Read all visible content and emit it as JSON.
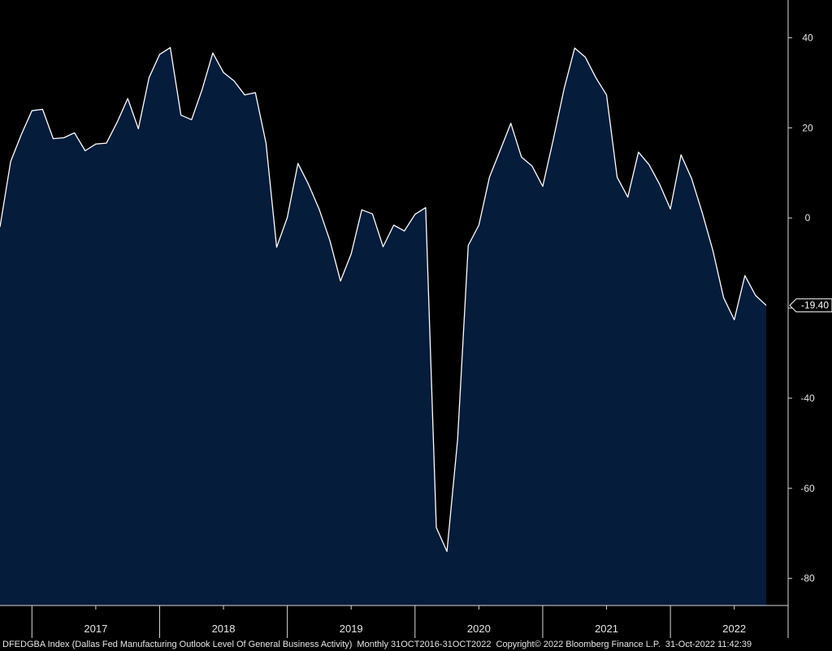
{
  "chart_data": {
    "type": "area",
    "title": "",
    "xlabel": "",
    "ylabel": "",
    "ylim": [
      -86,
      48
    ],
    "yticks": [
      40,
      20,
      0,
      -20,
      -40,
      -60,
      -80
    ],
    "x_year_labels": [
      "2017",
      "2018",
      "2019",
      "2020",
      "2021",
      "2022"
    ],
    "x": [
      "2016-10",
      "2016-11",
      "2016-12",
      "2017-01",
      "2017-02",
      "2017-03",
      "2017-04",
      "2017-05",
      "2017-06",
      "2017-07",
      "2017-08",
      "2017-09",
      "2017-10",
      "2017-11",
      "2017-12",
      "2018-01",
      "2018-02",
      "2018-03",
      "2018-04",
      "2018-05",
      "2018-06",
      "2018-07",
      "2018-08",
      "2018-09",
      "2018-10",
      "2018-11",
      "2018-12",
      "2019-01",
      "2019-02",
      "2019-03",
      "2019-04",
      "2019-05",
      "2019-06",
      "2019-07",
      "2019-08",
      "2019-09",
      "2019-10",
      "2019-11",
      "2019-12",
      "2020-01",
      "2020-02",
      "2020-03",
      "2020-04",
      "2020-05",
      "2020-06",
      "2020-07",
      "2020-08",
      "2020-09",
      "2020-10",
      "2020-11",
      "2020-12",
      "2021-01",
      "2021-02",
      "2021-03",
      "2021-04",
      "2021-05",
      "2021-06",
      "2021-07",
      "2021-08",
      "2021-09",
      "2021-10",
      "2021-11",
      "2021-12",
      "2022-01",
      "2022-02",
      "2022-03",
      "2022-04",
      "2022-05",
      "2022-06",
      "2022-07",
      "2022-08",
      "2022-09",
      "2022-10"
    ],
    "values": [
      -2,
      12.5,
      18.5,
      23.8,
      24.1,
      17.6,
      17.8,
      18.9,
      14.9,
      16.4,
      16.6,
      21.2,
      26.5,
      19.8,
      31.1,
      36.3,
      37.8,
      22.8,
      21.8,
      28.5,
      36.6,
      32.3,
      30.4,
      27.3,
      27.8,
      16.6,
      -6.5,
      0.1,
      12.1,
      7.4,
      1.9,
      -5.0,
      -14.0,
      -8.0,
      1.8,
      0.9,
      -6.4,
      -1.6,
      -2.9,
      0.8,
      2.3,
      -68.7,
      -74.0,
      -49.2,
      -6.1,
      -1.6,
      9.1,
      15.0,
      21.0,
      13.5,
      11.5,
      7.0,
      17.5,
      28.6,
      37.7,
      35.7,
      31.1,
      27.3,
      9.0,
      4.6,
      14.6,
      11.8,
      7.4,
      2.0,
      14.0,
      8.7,
      1.1,
      -7.3,
      -17.7,
      -22.6,
      -12.8,
      -17.2,
      -19.4
    ]
  },
  "last_value_label": "-19.40",
  "footer": {
    "index": "DFEDGBA Index (Dallas Fed Manufacturing Outlook Level Of General Business Activity)",
    "range": "Monthly 31OCT2016-31OCT2022",
    "copyright": "Copyright© 2022 Bloomberg Finance L.P.",
    "timestamp": "31-Oct-2022 11:42:39"
  },
  "colors": {
    "background": "#000000",
    "area_fill": "#051c3a",
    "line": "#ffffff",
    "axis": "#d9d9d9",
    "text": "#e6e6e6"
  }
}
